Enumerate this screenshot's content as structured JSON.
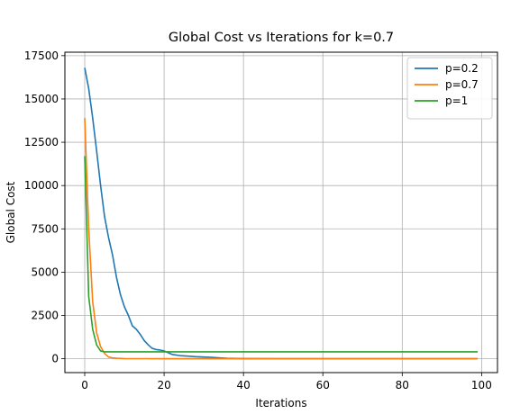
{
  "chart_data": {
    "type": "line",
    "title": "Global Cost vs Iterations for k=0.7",
    "xlabel": "Iterations",
    "ylabel": "Global Cost",
    "xlim": [
      -5,
      104
    ],
    "ylim": [
      -800,
      17700
    ],
    "xticks": [
      0,
      20,
      40,
      60,
      80,
      100
    ],
    "yticks": [
      0,
      2500,
      5000,
      7500,
      10000,
      12500,
      15000,
      17500
    ],
    "grid": true,
    "legend_position": "top-right",
    "series": [
      {
        "name": "p=0.2",
        "color": "#1f77b4",
        "x": [
          0,
          1,
          2,
          3,
          4,
          5,
          6,
          7,
          8,
          9,
          10,
          11,
          12,
          13,
          14,
          15,
          16,
          17,
          18,
          19,
          20,
          22,
          24,
          26,
          28,
          30,
          32,
          34,
          36,
          40,
          50,
          60,
          70,
          80,
          90,
          99
        ],
        "y": [
          16800,
          15600,
          13900,
          12000,
          10000,
          8200,
          7000,
          6000,
          4700,
          3700,
          3000,
          2500,
          1900,
          1700,
          1400,
          1050,
          800,
          600,
          530,
          500,
          450,
          250,
          180,
          150,
          120,
          100,
          80,
          50,
          20,
          10,
          5,
          5,
          5,
          5,
          5,
          5
        ]
      },
      {
        "name": "p=0.7",
        "color": "#ff7f0e",
        "x": [
          0,
          1,
          2,
          3,
          4,
          5,
          6,
          7,
          8,
          10,
          15,
          20,
          40,
          60,
          80,
          99
        ],
        "y": [
          13900,
          7500,
          3300,
          1500,
          700,
          300,
          100,
          50,
          30,
          10,
          5,
          0,
          0,
          0,
          0,
          0
        ]
      },
      {
        "name": "p=1",
        "color": "#2ca02c",
        "x": [
          0,
          1,
          2,
          3,
          4,
          5,
          6,
          10,
          20,
          40,
          60,
          80,
          99
        ],
        "y": [
          11700,
          3600,
          1700,
          800,
          450,
          400,
          400,
          400,
          400,
          400,
          400,
          400,
          400
        ]
      }
    ]
  }
}
